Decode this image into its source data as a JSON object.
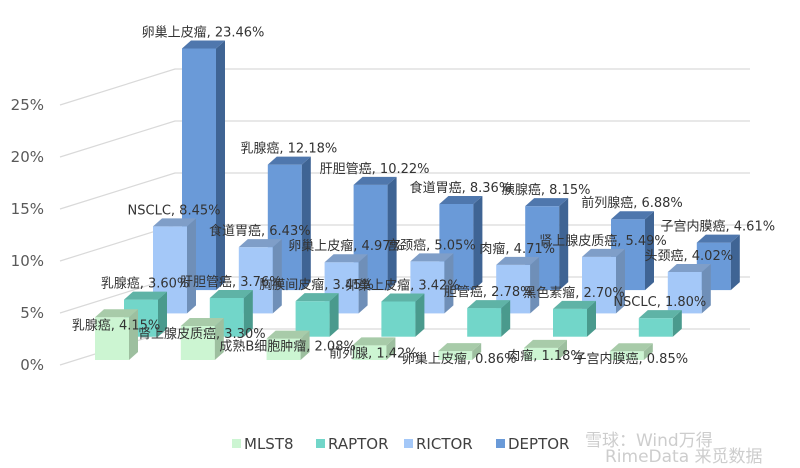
{
  "chart_data": {
    "type": "bar",
    "style": "3d-column",
    "ylim": [
      0,
      25
    ],
    "yticks": [
      "0%",
      "5%",
      "10%",
      "15%",
      "20%",
      "25%"
    ],
    "grid": true,
    "legend_position": "bottom",
    "series": [
      {
        "name": "MLST8",
        "color": "#ccf5d2",
        "labels": [
          "乳腺癌",
          "肾上腺皮质癌",
          "成熟B细胞肿瘤",
          "前列腺",
          "卵巢上皮瘤",
          "肉瘤",
          "子宫内膜癌"
        ],
        "values": [
          4.15,
          3.3,
          2.08,
          1.42,
          0.86,
          1.18,
          0.85
        ]
      },
      {
        "name": "RAPTOR",
        "color": "#72d6c9",
        "labels": [
          "乳腺癌",
          "肝胆管癌",
          "胸膜间皮瘤",
          "卵巢上皮瘤",
          "胆管癌",
          "黑色素瘤",
          "NSCLC"
        ],
        "values": [
          3.6,
          3.76,
          3.45,
          3.42,
          2.78,
          2.7,
          1.8
        ]
      },
      {
        "name": "RICTOR",
        "color": "#a4c8f8",
        "labels": [
          "NSCLC",
          "食道胃癌",
          "卵巢上皮瘤",
          "宫颈癌",
          "肉瘤",
          "肾上腺皮质癌",
          "头颈癌"
        ],
        "values": [
          8.45,
          6.43,
          4.97,
          5.05,
          4.71,
          5.49,
          4.02
        ]
      },
      {
        "name": "DEPTOR",
        "color": "#6a9ad8",
        "labels": [
          "卵巢上皮瘤",
          "乳腺癌",
          "肝胆管癌",
          "食道胃癌",
          "胰腺癌",
          "前列腺癌",
          "子宫内膜癌"
        ],
        "values": [
          23.46,
          12.18,
          10.22,
          8.36,
          8.15,
          6.88,
          4.61
        ]
      }
    ]
  },
  "watermark": [
    "雪球：Wind万得",
    "RimeData 来觅数据"
  ]
}
